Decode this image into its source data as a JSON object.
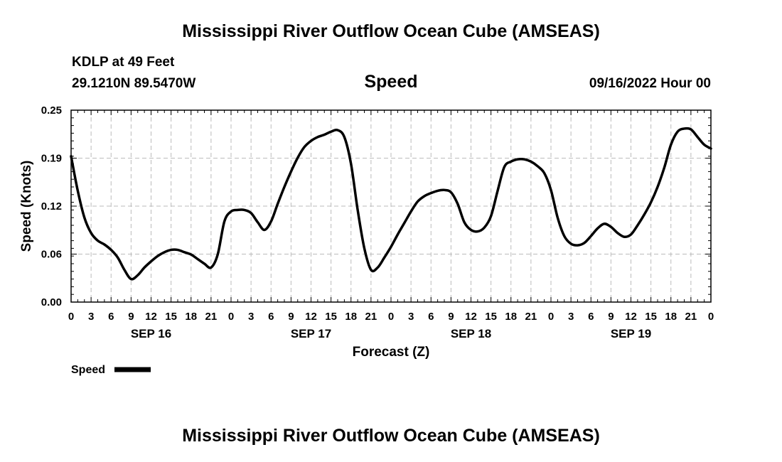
{
  "page": {
    "title": "Mississippi River Outflow Ocean Cube (AMSEAS)",
    "station": "KDLP at 49 Feet",
    "coords": "29.1210N  89.5470W",
    "subtitle": "Speed",
    "datetime": "09/16/2022 Hour 00",
    "footer_title": "Mississippi River Outflow Ocean Cube (AMSEAS)"
  },
  "chart_data": {
    "type": "line",
    "title": "Speed",
    "xlabel": "Forecast (Z)",
    "ylabel": "Speed (Knots)",
    "ylim": [
      0,
      0.25
    ],
    "xlim": [
      0,
      96
    ],
    "grid": true,
    "y_ticks": [
      "0.00",
      "0.06",
      "0.12",
      "0.19",
      "0.25"
    ],
    "y_tick_values": [
      0,
      0.0625,
      0.125,
      0.1875,
      0.25
    ],
    "x_ticks": [
      "0",
      "3",
      "6",
      "9",
      "12",
      "15",
      "18",
      "21",
      "0",
      "3",
      "6",
      "9",
      "12",
      "15",
      "18",
      "21",
      "0",
      "3",
      "6",
      "9",
      "12",
      "15",
      "18",
      "21",
      "0",
      "3",
      "6",
      "9",
      "12",
      "15",
      "18",
      "21",
      "0"
    ],
    "day_labels": [
      {
        "label": "SEP 16",
        "hour": 12
      },
      {
        "label": "SEP 17",
        "hour": 36
      },
      {
        "label": "SEP 18",
        "hour": 60
      },
      {
        "label": "SEP 19",
        "hour": 84
      }
    ],
    "legend": {
      "label": "Speed",
      "placement": "bottom-left"
    },
    "series": [
      {
        "name": "Speed",
        "color": "#000000",
        "x": [
          0,
          1,
          2,
          3,
          4,
          5,
          6,
          7,
          8,
          9,
          10,
          11,
          12,
          13,
          14,
          15,
          16,
          17,
          18,
          19,
          20,
          21,
          22,
          23,
          24,
          25,
          26,
          27,
          28,
          29,
          30,
          31,
          32,
          33,
          34,
          35,
          36,
          37,
          38,
          39,
          40,
          41,
          42,
          43,
          44,
          45,
          46,
          47,
          48,
          49,
          50,
          51,
          52,
          53,
          54,
          55,
          56,
          57,
          58,
          59,
          60,
          61,
          62,
          63,
          64,
          65,
          66,
          67,
          68,
          69,
          70,
          71,
          72,
          73,
          74,
          75,
          76,
          77,
          78,
          79,
          80,
          81,
          82,
          83,
          84,
          85,
          86,
          87,
          88,
          89,
          90,
          91,
          92,
          93,
          94,
          95,
          96
        ],
        "values": [
          0.19,
          0.145,
          0.11,
          0.09,
          0.08,
          0.075,
          0.068,
          0.058,
          0.042,
          0.03,
          0.035,
          0.045,
          0.053,
          0.06,
          0.065,
          0.068,
          0.068,
          0.065,
          0.062,
          0.056,
          0.05,
          0.045,
          0.062,
          0.105,
          0.118,
          0.12,
          0.12,
          0.116,
          0.104,
          0.094,
          0.105,
          0.128,
          0.15,
          0.17,
          0.188,
          0.202,
          0.21,
          0.215,
          0.218,
          0.222,
          0.224,
          0.215,
          0.18,
          0.12,
          0.07,
          0.042,
          0.045,
          0.058,
          0.072,
          0.088,
          0.103,
          0.118,
          0.131,
          0.138,
          0.142,
          0.145,
          0.146,
          0.143,
          0.128,
          0.104,
          0.094,
          0.092,
          0.097,
          0.112,
          0.145,
          0.176,
          0.183,
          0.186,
          0.186,
          0.183,
          0.177,
          0.168,
          0.146,
          0.11,
          0.086,
          0.076,
          0.074,
          0.077,
          0.086,
          0.096,
          0.102,
          0.098,
          0.09,
          0.085,
          0.088,
          0.1,
          0.114,
          0.13,
          0.15,
          0.175,
          0.205,
          0.222,
          0.226,
          0.225,
          0.215,
          0.205,
          0.2
        ]
      }
    ]
  }
}
